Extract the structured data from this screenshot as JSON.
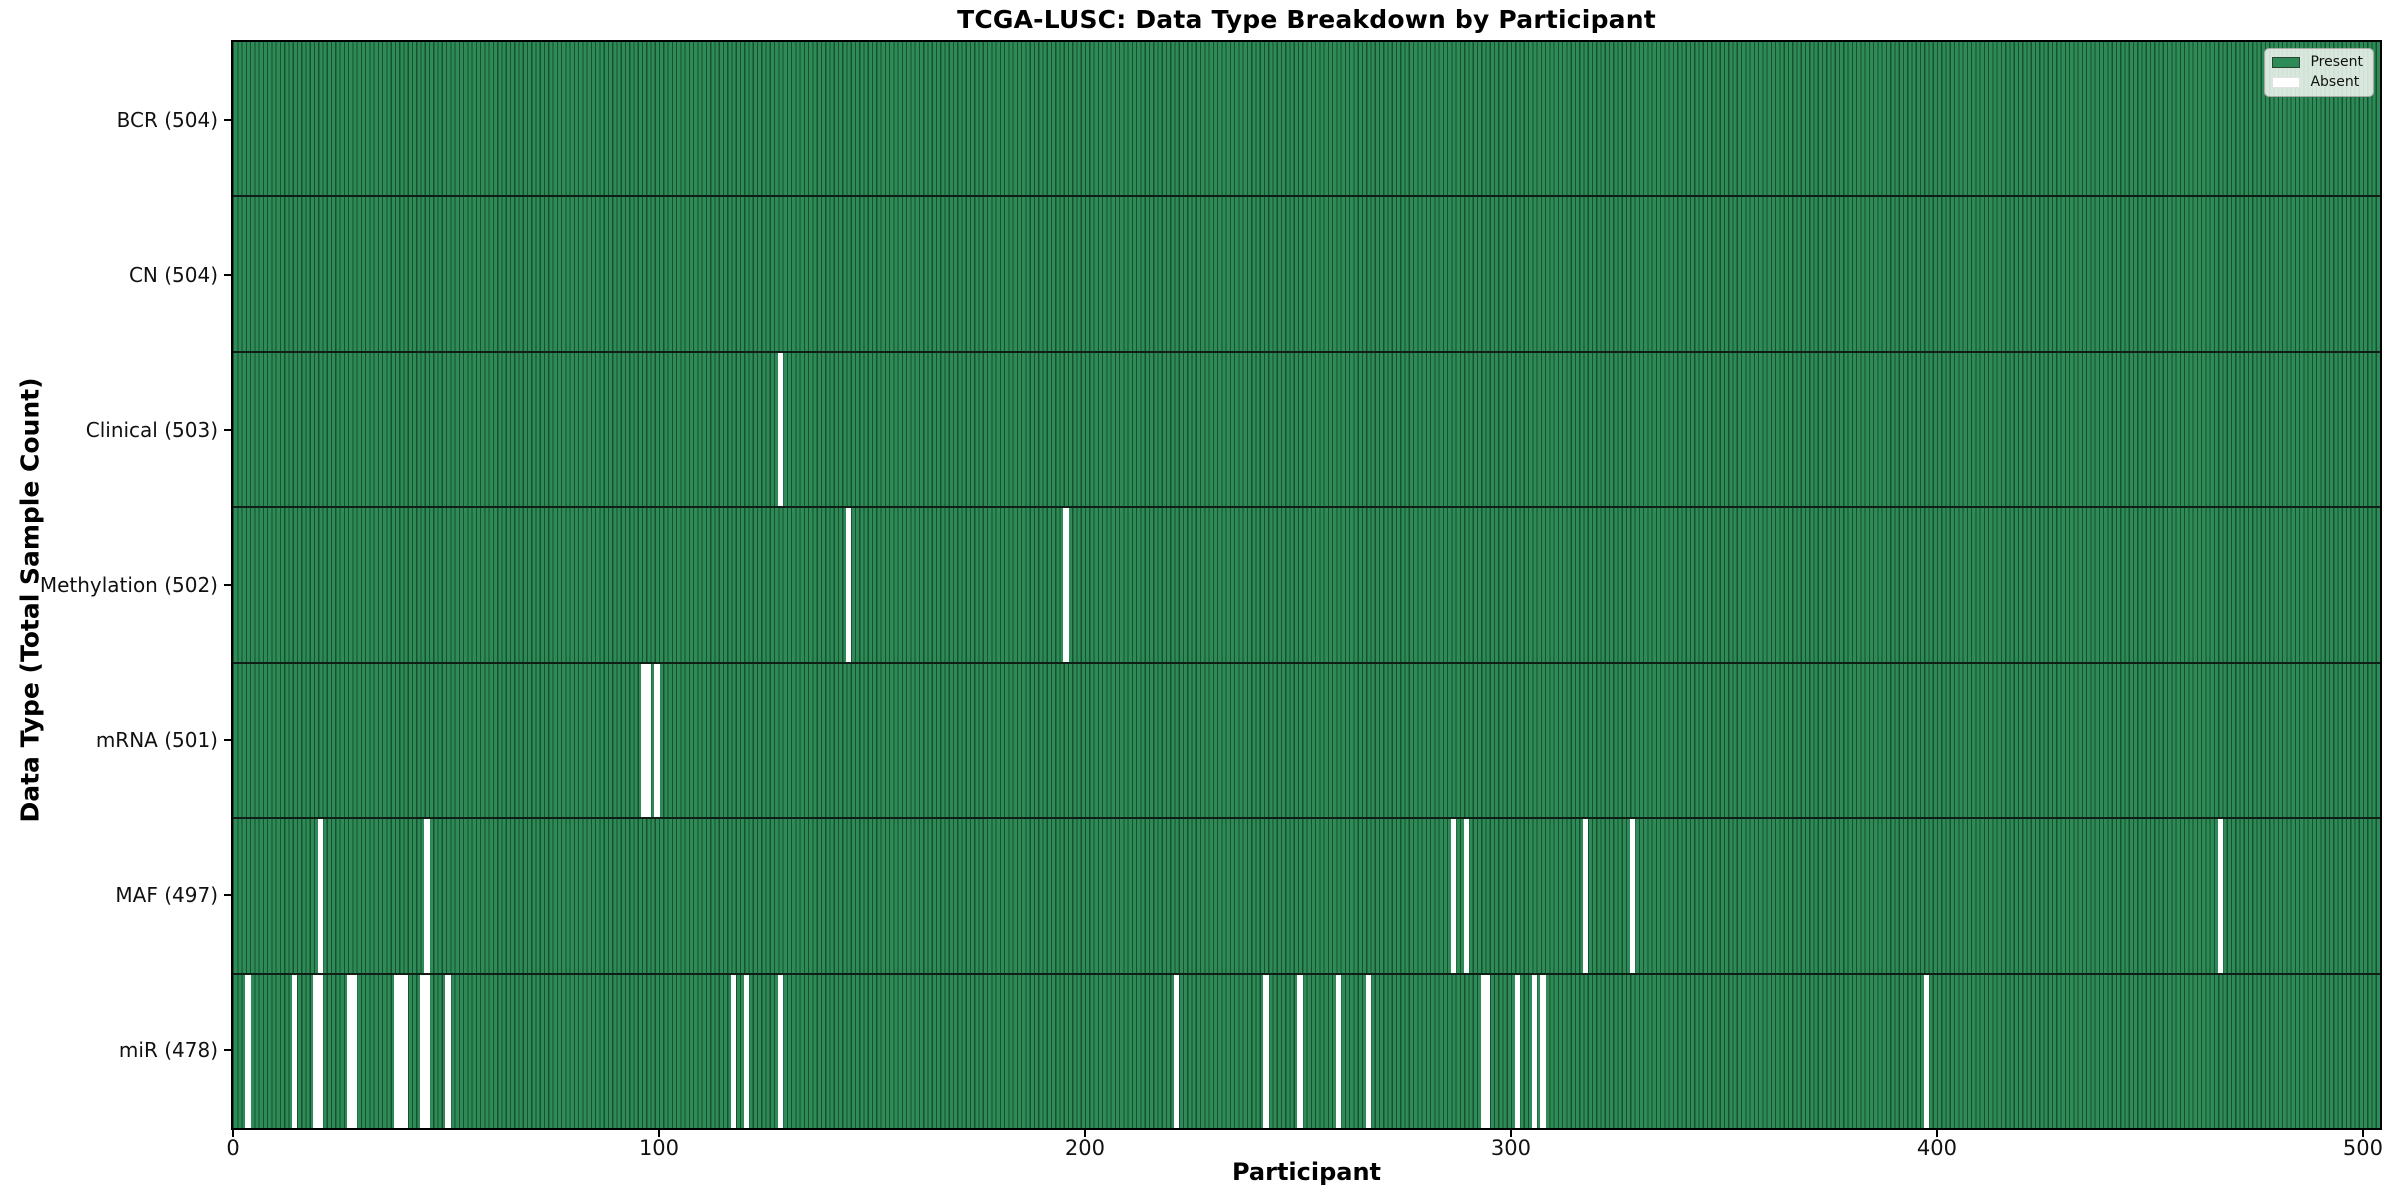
{
  "chart_data": {
    "type": "heatmap",
    "title": "TCGA-LUSC: Data Type Breakdown by Participant",
    "xlabel": "Participant",
    "ylabel": "Data Type (Total Sample Count)",
    "x_ticks": [
      0,
      100,
      200,
      300,
      400,
      500
    ],
    "x_range": [
      0,
      504
    ],
    "total_participants": 504,
    "grid": false,
    "legend": {
      "position": "upper right",
      "entries": [
        {
          "label": "Present",
          "color": "#2e8b57"
        },
        {
          "label": "Absent",
          "color": "#ffffff"
        }
      ]
    },
    "colors": {
      "present_fill": "#2e8b57",
      "bar_edge": "#17512f",
      "absent_fill": "#ffffff",
      "row_divider": "#101f16",
      "axis": "#000000"
    },
    "rows": [
      {
        "name": "bcr",
        "data_type": "BCR",
        "label": "BCR (504)",
        "present_count": 504,
        "absent_participants": []
      },
      {
        "name": "cn",
        "data_type": "CN",
        "label": "CN (504)",
        "present_count": 504,
        "absent_participants": []
      },
      {
        "name": "clinical",
        "data_type": "Clinical",
        "label": "Clinical (503)",
        "present_count": 503,
        "absent_participants": [
          128
        ]
      },
      {
        "name": "methylation",
        "data_type": "Methylation",
        "label": "Methylation (502)",
        "present_count": 502,
        "absent_participants": [
          144,
          195
        ]
      },
      {
        "name": "mrna",
        "data_type": "mRNA",
        "label": "mRNA (501)",
        "present_count": 501,
        "absent_participants": [
          96,
          97,
          99
        ]
      },
      {
        "name": "maf",
        "data_type": "MAF",
        "label": "MAF (497)",
        "present_count": 497,
        "absent_participants": [
          20,
          45,
          286,
          289,
          317,
          328,
          466
        ]
      },
      {
        "name": "mir",
        "data_type": "miR",
        "label": "miR (478)",
        "present_count": 478,
        "absent_participants": [
          3,
          14,
          19,
          20,
          27,
          28,
          38,
          39,
          40,
          44,
          45,
          50,
          117,
          120,
          128,
          221,
          242,
          250,
          259,
          266,
          293,
          294,
          301,
          305,
          307,
          397
        ]
      }
    ]
  }
}
